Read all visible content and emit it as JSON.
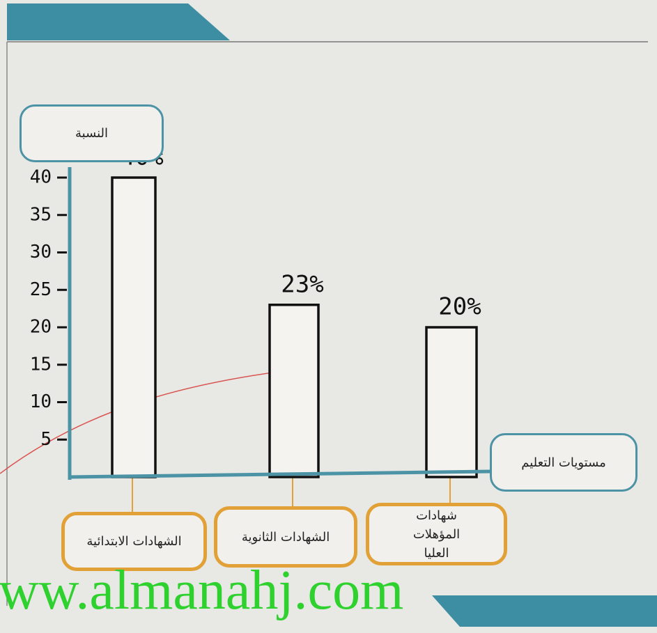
{
  "chart_data": {
    "type": "bar",
    "y_label": "النسبة",
    "x_label": "مستويات التعليم",
    "categories": [
      "الشهادات الابتدائية",
      "الشهادات الثانوية",
      "شهادات المؤهلات العليا"
    ],
    "values": [
      40,
      23,
      20
    ],
    "value_labels": [
      "40%",
      "23%",
      "20%"
    ],
    "color": "#f4f3ef",
    "ylim": [
      0,
      40
    ],
    "yticks": [
      5,
      10,
      15,
      20,
      25,
      30,
      35,
      40
    ]
  },
  "watermark": "ww.almanahj.com"
}
